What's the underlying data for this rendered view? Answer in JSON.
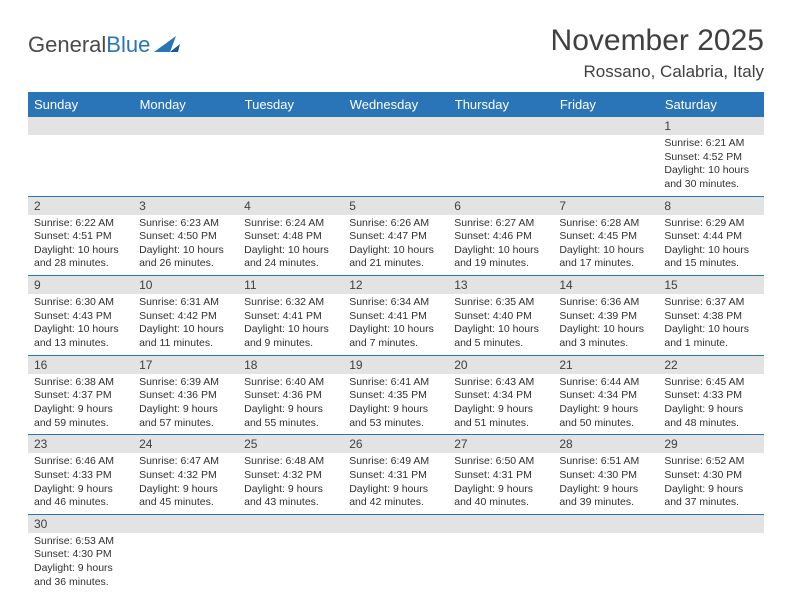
{
  "logo": {
    "text1": "General",
    "text2": "Blue"
  },
  "title": "November 2025",
  "location": "Rossano, Calabria, Italy",
  "colors": {
    "header_bg": "#2a74b8",
    "header_fg": "#ffffff",
    "daynum_bg": "#e3e3e3",
    "border": "#2a74b8",
    "text": "#303030"
  },
  "weekdays": [
    "Sunday",
    "Monday",
    "Tuesday",
    "Wednesday",
    "Thursday",
    "Friday",
    "Saturday"
  ],
  "weeks": [
    [
      {
        "n": "",
        "sr": "",
        "ss": "",
        "dl": ""
      },
      {
        "n": "",
        "sr": "",
        "ss": "",
        "dl": ""
      },
      {
        "n": "",
        "sr": "",
        "ss": "",
        "dl": ""
      },
      {
        "n": "",
        "sr": "",
        "ss": "",
        "dl": ""
      },
      {
        "n": "",
        "sr": "",
        "ss": "",
        "dl": ""
      },
      {
        "n": "",
        "sr": "",
        "ss": "",
        "dl": ""
      },
      {
        "n": "1",
        "sr": "Sunrise: 6:21 AM",
        "ss": "Sunset: 4:52 PM",
        "dl": "Daylight: 10 hours and 30 minutes."
      }
    ],
    [
      {
        "n": "2",
        "sr": "Sunrise: 6:22 AM",
        "ss": "Sunset: 4:51 PM",
        "dl": "Daylight: 10 hours and 28 minutes."
      },
      {
        "n": "3",
        "sr": "Sunrise: 6:23 AM",
        "ss": "Sunset: 4:50 PM",
        "dl": "Daylight: 10 hours and 26 minutes."
      },
      {
        "n": "4",
        "sr": "Sunrise: 6:24 AM",
        "ss": "Sunset: 4:48 PM",
        "dl": "Daylight: 10 hours and 24 minutes."
      },
      {
        "n": "5",
        "sr": "Sunrise: 6:26 AM",
        "ss": "Sunset: 4:47 PM",
        "dl": "Daylight: 10 hours and 21 minutes."
      },
      {
        "n": "6",
        "sr": "Sunrise: 6:27 AM",
        "ss": "Sunset: 4:46 PM",
        "dl": "Daylight: 10 hours and 19 minutes."
      },
      {
        "n": "7",
        "sr": "Sunrise: 6:28 AM",
        "ss": "Sunset: 4:45 PM",
        "dl": "Daylight: 10 hours and 17 minutes."
      },
      {
        "n": "8",
        "sr": "Sunrise: 6:29 AM",
        "ss": "Sunset: 4:44 PM",
        "dl": "Daylight: 10 hours and 15 minutes."
      }
    ],
    [
      {
        "n": "9",
        "sr": "Sunrise: 6:30 AM",
        "ss": "Sunset: 4:43 PM",
        "dl": "Daylight: 10 hours and 13 minutes."
      },
      {
        "n": "10",
        "sr": "Sunrise: 6:31 AM",
        "ss": "Sunset: 4:42 PM",
        "dl": "Daylight: 10 hours and 11 minutes."
      },
      {
        "n": "11",
        "sr": "Sunrise: 6:32 AM",
        "ss": "Sunset: 4:41 PM",
        "dl": "Daylight: 10 hours and 9 minutes."
      },
      {
        "n": "12",
        "sr": "Sunrise: 6:34 AM",
        "ss": "Sunset: 4:41 PM",
        "dl": "Daylight: 10 hours and 7 minutes."
      },
      {
        "n": "13",
        "sr": "Sunrise: 6:35 AM",
        "ss": "Sunset: 4:40 PM",
        "dl": "Daylight: 10 hours and 5 minutes."
      },
      {
        "n": "14",
        "sr": "Sunrise: 6:36 AM",
        "ss": "Sunset: 4:39 PM",
        "dl": "Daylight: 10 hours and 3 minutes."
      },
      {
        "n": "15",
        "sr": "Sunrise: 6:37 AM",
        "ss": "Sunset: 4:38 PM",
        "dl": "Daylight: 10 hours and 1 minute."
      }
    ],
    [
      {
        "n": "16",
        "sr": "Sunrise: 6:38 AM",
        "ss": "Sunset: 4:37 PM",
        "dl": "Daylight: 9 hours and 59 minutes."
      },
      {
        "n": "17",
        "sr": "Sunrise: 6:39 AM",
        "ss": "Sunset: 4:36 PM",
        "dl": "Daylight: 9 hours and 57 minutes."
      },
      {
        "n": "18",
        "sr": "Sunrise: 6:40 AM",
        "ss": "Sunset: 4:36 PM",
        "dl": "Daylight: 9 hours and 55 minutes."
      },
      {
        "n": "19",
        "sr": "Sunrise: 6:41 AM",
        "ss": "Sunset: 4:35 PM",
        "dl": "Daylight: 9 hours and 53 minutes."
      },
      {
        "n": "20",
        "sr": "Sunrise: 6:43 AM",
        "ss": "Sunset: 4:34 PM",
        "dl": "Daylight: 9 hours and 51 minutes."
      },
      {
        "n": "21",
        "sr": "Sunrise: 6:44 AM",
        "ss": "Sunset: 4:34 PM",
        "dl": "Daylight: 9 hours and 50 minutes."
      },
      {
        "n": "22",
        "sr": "Sunrise: 6:45 AM",
        "ss": "Sunset: 4:33 PM",
        "dl": "Daylight: 9 hours and 48 minutes."
      }
    ],
    [
      {
        "n": "23",
        "sr": "Sunrise: 6:46 AM",
        "ss": "Sunset: 4:33 PM",
        "dl": "Daylight: 9 hours and 46 minutes."
      },
      {
        "n": "24",
        "sr": "Sunrise: 6:47 AM",
        "ss": "Sunset: 4:32 PM",
        "dl": "Daylight: 9 hours and 45 minutes."
      },
      {
        "n": "25",
        "sr": "Sunrise: 6:48 AM",
        "ss": "Sunset: 4:32 PM",
        "dl": "Daylight: 9 hours and 43 minutes."
      },
      {
        "n": "26",
        "sr": "Sunrise: 6:49 AM",
        "ss": "Sunset: 4:31 PM",
        "dl": "Daylight: 9 hours and 42 minutes."
      },
      {
        "n": "27",
        "sr": "Sunrise: 6:50 AM",
        "ss": "Sunset: 4:31 PM",
        "dl": "Daylight: 9 hours and 40 minutes."
      },
      {
        "n": "28",
        "sr": "Sunrise: 6:51 AM",
        "ss": "Sunset: 4:30 PM",
        "dl": "Daylight: 9 hours and 39 minutes."
      },
      {
        "n": "29",
        "sr": "Sunrise: 6:52 AM",
        "ss": "Sunset: 4:30 PM",
        "dl": "Daylight: 9 hours and 37 minutes."
      }
    ],
    [
      {
        "n": "30",
        "sr": "Sunrise: 6:53 AM",
        "ss": "Sunset: 4:30 PM",
        "dl": "Daylight: 9 hours and 36 minutes."
      },
      {
        "n": "",
        "sr": "",
        "ss": "",
        "dl": ""
      },
      {
        "n": "",
        "sr": "",
        "ss": "",
        "dl": ""
      },
      {
        "n": "",
        "sr": "",
        "ss": "",
        "dl": ""
      },
      {
        "n": "",
        "sr": "",
        "ss": "",
        "dl": ""
      },
      {
        "n": "",
        "sr": "",
        "ss": "",
        "dl": ""
      },
      {
        "n": "",
        "sr": "",
        "ss": "",
        "dl": ""
      }
    ]
  ]
}
